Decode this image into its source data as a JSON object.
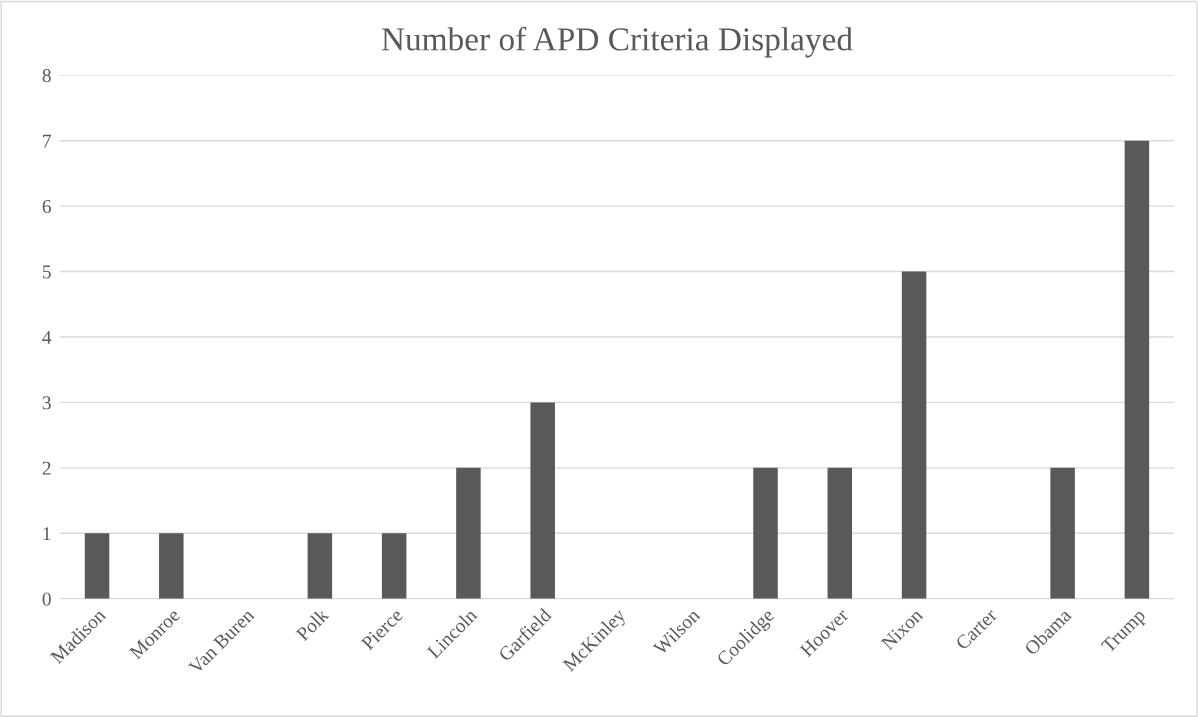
{
  "chart_data": {
    "type": "bar",
    "title": "Number of APD Criteria Displayed",
    "categories": [
      "Madison",
      "Monroe",
      "Van Buren",
      "Polk",
      "Pierce",
      "Lincoln",
      "Garfield",
      "McKinley",
      "Wilson",
      "Coolidge",
      "Hoover",
      "Nixon",
      "Carter",
      "Obama",
      "Trump"
    ],
    "values": [
      1,
      1,
      0,
      1,
      1,
      2,
      3,
      0,
      0,
      2,
      2,
      5,
      0,
      2,
      7
    ],
    "color": "#595959",
    "ylim": [
      0,
      8
    ],
    "yticks": [
      0,
      1,
      2,
      3,
      4,
      5,
      6,
      7,
      8
    ],
    "grid": "y",
    "legend": false
  }
}
